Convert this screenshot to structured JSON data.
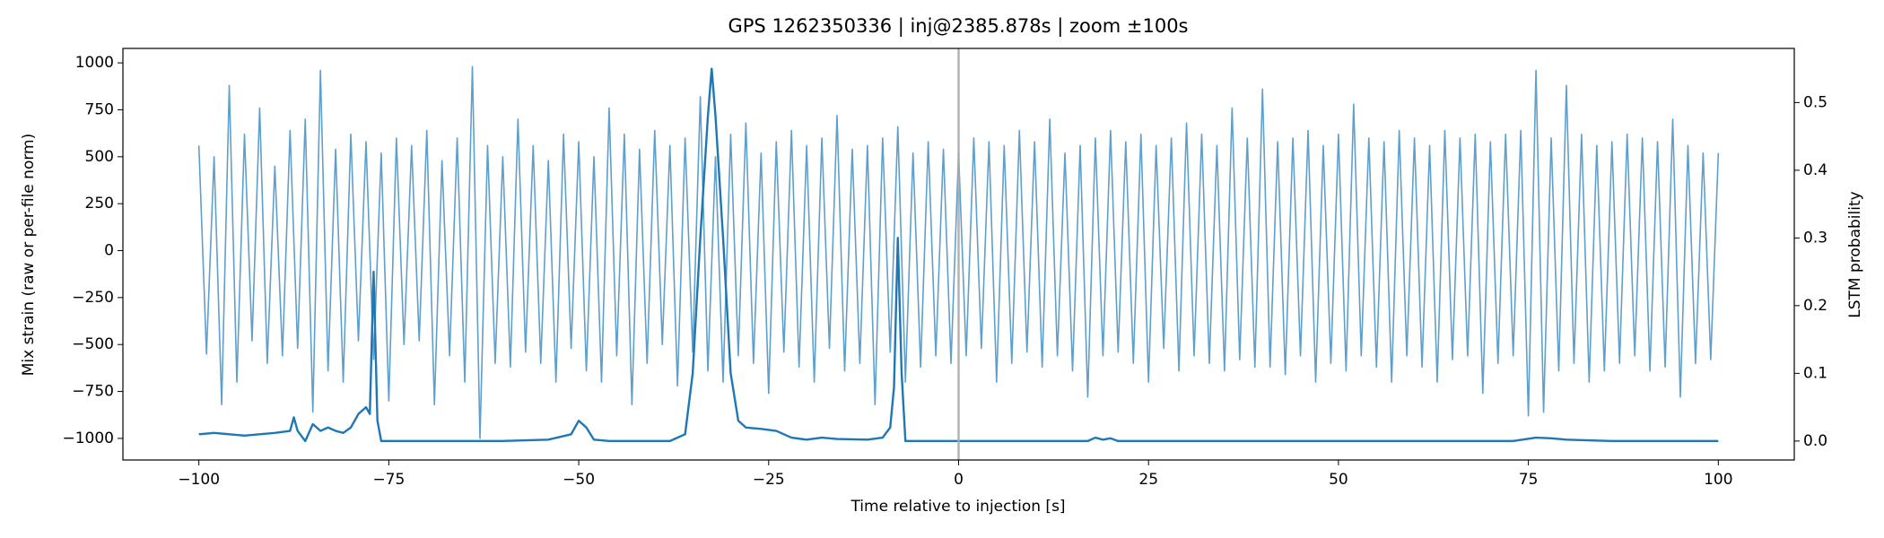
{
  "chart_data": {
    "type": "line",
    "title": "GPS 1262350336 | inj@2385.878s | zoom ±100s",
    "xlabel": "Time relative to injection [s]",
    "ylabel": "Mix strain (raw or per-file norm)",
    "y2label": "LSTM probability",
    "xlim": [
      -110,
      110
    ],
    "ylim": [
      -1115,
      1077
    ],
    "y2lim": [
      -0.028,
      0.58
    ],
    "xticks": [
      {
        "value": -100,
        "label": "−100"
      },
      {
        "value": -75,
        "label": "−75"
      },
      {
        "value": -50,
        "label": "−50"
      },
      {
        "value": -25,
        "label": "−25"
      },
      0,
      25,
      50,
      75,
      100
    ],
    "yticks": [
      {
        "value": -1000,
        "label": "−1000"
      },
      {
        "value": -750,
        "label": "−750"
      },
      {
        "value": -500,
        "label": "−500"
      },
      {
        "value": -250,
        "label": "−250"
      },
      0,
      250,
      500,
      750,
      1000
    ],
    "y2ticks": [
      {
        "value": 0,
        "label": "0.0"
      },
      0.1,
      0.2,
      0.3,
      0.4,
      0.5
    ],
    "vline": 0,
    "vline_color": "#aaaaaa",
    "series": [
      {
        "color": "#5f9fcc",
        "x": [
          -100,
          -99,
          -98,
          -97,
          -96,
          -95,
          -94,
          -93,
          -92,
          -91,
          -90,
          -89,
          -88,
          -87,
          -86,
          -85,
          -84,
          -83,
          -82,
          -81,
          -80,
          -79,
          -78,
          -77,
          -76,
          -75,
          -74,
          -73,
          -72,
          -71,
          -70,
          -69,
          -68,
          -67,
          -66,
          -65,
          -64,
          -63,
          -62,
          -61,
          -60,
          -59,
          -58,
          -57,
          -56,
          -55,
          -54,
          -53,
          -52,
          -51,
          -50,
          -49,
          -48,
          -47,
          -46,
          -45,
          -44,
          -43,
          -42,
          -41,
          -40,
          -39,
          -38,
          -37,
          -36,
          -35,
          -34,
          -33,
          -32,
          -31,
          -30,
          -29,
          -28,
          -27,
          -26,
          -25,
          -24,
          -23,
          -22,
          -21,
          -20,
          -19,
          -18,
          -17,
          -16,
          -15,
          -14,
          -13,
          -12,
          -11,
          -10,
          -9,
          -8,
          -7,
          -6,
          -5,
          -4,
          -3,
          -2,
          -1,
          0,
          1,
          2,
          3,
          4,
          5,
          6,
          7,
          8,
          9,
          10,
          11,
          12,
          13,
          14,
          15,
          16,
          17,
          18,
          19,
          20,
          21,
          22,
          23,
          24,
          25,
          26,
          27,
          28,
          29,
          30,
          31,
          32,
          33,
          34,
          35,
          36,
          37,
          38,
          39,
          40,
          41,
          42,
          43,
          44,
          45,
          46,
          47,
          48,
          49,
          50,
          51,
          52,
          53,
          54,
          55,
          56,
          57,
          58,
          59,
          60,
          61,
          62,
          63,
          64,
          65,
          66,
          67,
          68,
          69,
          70,
          71,
          72,
          73,
          74,
          75,
          76,
          77,
          78,
          79,
          80,
          81,
          82,
          83,
          84,
          85,
          86,
          87,
          88,
          89,
          90,
          91,
          92,
          93,
          94,
          95,
          96,
          97,
          98,
          99,
          100
        ],
        "values": [
          560,
          -550,
          500,
          -820,
          880,
          -700,
          620,
          -480,
          760,
          -600,
          450,
          -560,
          640,
          -520,
          700,
          -860,
          960,
          -640,
          540,
          -700,
          620,
          -480,
          580,
          -580,
          520,
          -800,
          600,
          -500,
          560,
          -480,
          640,
          -820,
          480,
          -560,
          600,
          -700,
          980,
          -1000,
          560,
          -600,
          500,
          -620,
          700,
          -540,
          560,
          -600,
          480,
          -700,
          620,
          -520,
          580,
          -640,
          500,
          -700,
          760,
          -560,
          620,
          -820,
          540,
          -600,
          640,
          -500,
          560,
          -720,
          600,
          -540,
          820,
          -640,
          500,
          -700,
          620,
          -560,
          680,
          -600,
          520,
          -760,
          580,
          -540,
          640,
          -620,
          560,
          -700,
          600,
          -520,
          720,
          -640,
          540,
          -600,
          560,
          -820,
          600,
          -540,
          660,
          -700,
          520,
          -620,
          580,
          -560,
          540,
          -600,
          520,
          -560,
          600,
          -520,
          580,
          -700,
          560,
          -600,
          640,
          -540,
          580,
          -620,
          700,
          -560,
          520,
          -640,
          560,
          -780,
          600,
          -560,
          640,
          -540,
          580,
          -600,
          620,
          -700,
          560,
          -520,
          600,
          -640,
          680,
          -560,
          620,
          -600,
          560,
          -640,
          760,
          -580,
          600,
          -620,
          860,
          -620,
          580,
          -660,
          600,
          -560,
          640,
          -700,
          560,
          -600,
          620,
          -640,
          780,
          -560,
          600,
          -620,
          580,
          -700,
          640,
          -560,
          600,
          -620,
          560,
          -700,
          640,
          -580,
          600,
          -560,
          620,
          -760,
          580,
          -600,
          620,
          -560,
          640,
          -880,
          960,
          -860,
          600,
          -640,
          880,
          -600,
          620,
          -700,
          560,
          -640,
          580,
          -600,
          620,
          -560,
          600,
          -640,
          580,
          -620,
          700,
          -780,
          560,
          -600,
          520,
          -580,
          520
        ]
      },
      {
        "color": "#1f77b4",
        "axis": "y2",
        "x": [
          -100,
          -98,
          -96,
          -94,
          -92,
          -90,
          -88,
          -87.5,
          -87,
          -86,
          -85,
          -84,
          -83,
          -82,
          -81,
          -80,
          -79,
          -78,
          -77.5,
          -77,
          -76.5,
          -76,
          -74,
          -60,
          -54,
          -51,
          -50,
          -49,
          -48,
          -46,
          -38,
          -36,
          -35,
          -34,
          -33,
          -32.5,
          -32,
          -31,
          -30,
          -29,
          -28,
          -26,
          -24,
          -22,
          -20,
          -18,
          -16,
          -12,
          -10,
          -9,
          -8.5,
          -8,
          -7.5,
          -7,
          0,
          17,
          18,
          19,
          20,
          21,
          73,
          76,
          78,
          80,
          86,
          100
        ],
        "values": [
          0.01,
          0.012,
          0.01,
          0.008,
          0.01,
          0.012,
          0.015,
          0.035,
          0.015,
          0,
          0.025,
          0.015,
          0.02,
          0.015,
          0.012,
          0.02,
          0.04,
          0.05,
          0.04,
          0.25,
          0.03,
          0,
          0,
          0,
          0.002,
          0.01,
          0.03,
          0.02,
          0.002,
          0,
          0,
          0.01,
          0.1,
          0.3,
          0.48,
          0.55,
          0.48,
          0.3,
          0.1,
          0.03,
          0.02,
          0.018,
          0.015,
          0.005,
          0.002,
          0.005,
          0.003,
          0.002,
          0.005,
          0.02,
          0.08,
          0.3,
          0.1,
          0,
          0,
          0,
          0.005,
          0.002,
          0.004,
          0,
          0,
          0.005,
          0.004,
          0.002,
          0,
          0
        ]
      }
    ]
  }
}
